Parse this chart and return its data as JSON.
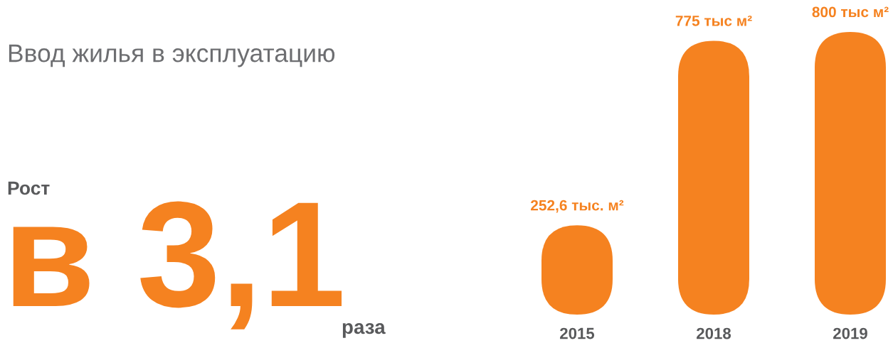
{
  "chart_data": {
    "type": "bar",
    "title": "Ввод жилья в эксплуатацию",
    "categories": [
      "2015",
      "2018",
      "2019"
    ],
    "values": [
      252.6,
      775,
      800
    ],
    "color": "#f58220",
    "value_labels": [
      "252,6 тыс. м²",
      "775 тыс м²",
      "800 тыс м²"
    ],
    "annotations": [
      "Рост",
      "в 3,1",
      "раза"
    ],
    "tick_labels": "x"
  }
}
